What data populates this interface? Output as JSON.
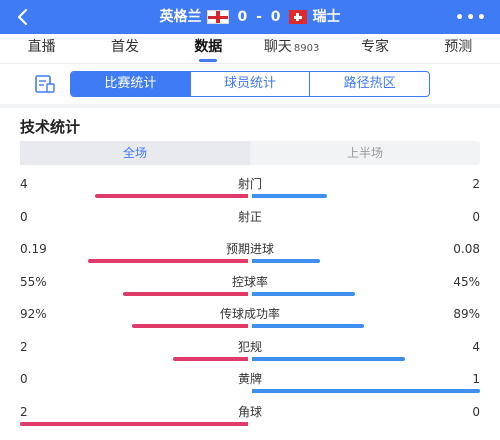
{
  "header": {
    "home_team": "英格兰",
    "away_team": "瑞士",
    "home_score": "0",
    "separator": "-",
    "away_score": "0",
    "more_label": "•••"
  },
  "tabs": [
    {
      "label": "直播",
      "count": ""
    },
    {
      "label": "首发",
      "count": ""
    },
    {
      "label": "数据",
      "count": ""
    },
    {
      "label": "聊天",
      "count": "8903"
    },
    {
      "label": "专家",
      "count": ""
    },
    {
      "label": "预测",
      "count": ""
    }
  ],
  "active_tab": "数据",
  "subnav": {
    "items": [
      "比赛统计",
      "球员统计",
      "路径热区"
    ],
    "active": "比赛统计"
  },
  "section_title": "技术统计",
  "period": {
    "items": [
      "全场",
      "上半场"
    ],
    "active": "全场"
  },
  "colors": {
    "accent": "#3f7bf5",
    "home_bar": "#e03a6a",
    "away_bar": "#3f8ff0"
  },
  "stats": [
    {
      "label": "射门",
      "home": "4",
      "away": "2",
      "home_share": 0.67,
      "away_share": 0.33
    },
    {
      "label": "射正",
      "home": "0",
      "away": "0",
      "home_share": 0,
      "away_share": 0
    },
    {
      "label": "预期进球",
      "home": "0.19",
      "away": "0.08",
      "home_share": 0.7,
      "away_share": 0.3
    },
    {
      "label": "控球率",
      "home": "55%",
      "away": "45%",
      "home_share": 0.55,
      "away_share": 0.45
    },
    {
      "label": "传球成功率",
      "home": "92%",
      "away": "89%",
      "home_share": 0.51,
      "away_share": 0.49
    },
    {
      "label": "犯规",
      "home": "2",
      "away": "4",
      "home_share": 0.33,
      "away_share": 0.67
    },
    {
      "label": "黄牌",
      "home": "0",
      "away": "1",
      "home_share": 0,
      "away_share": 1
    },
    {
      "label": "角球",
      "home": "2",
      "away": "0",
      "home_share": 1,
      "away_share": 0
    }
  ]
}
